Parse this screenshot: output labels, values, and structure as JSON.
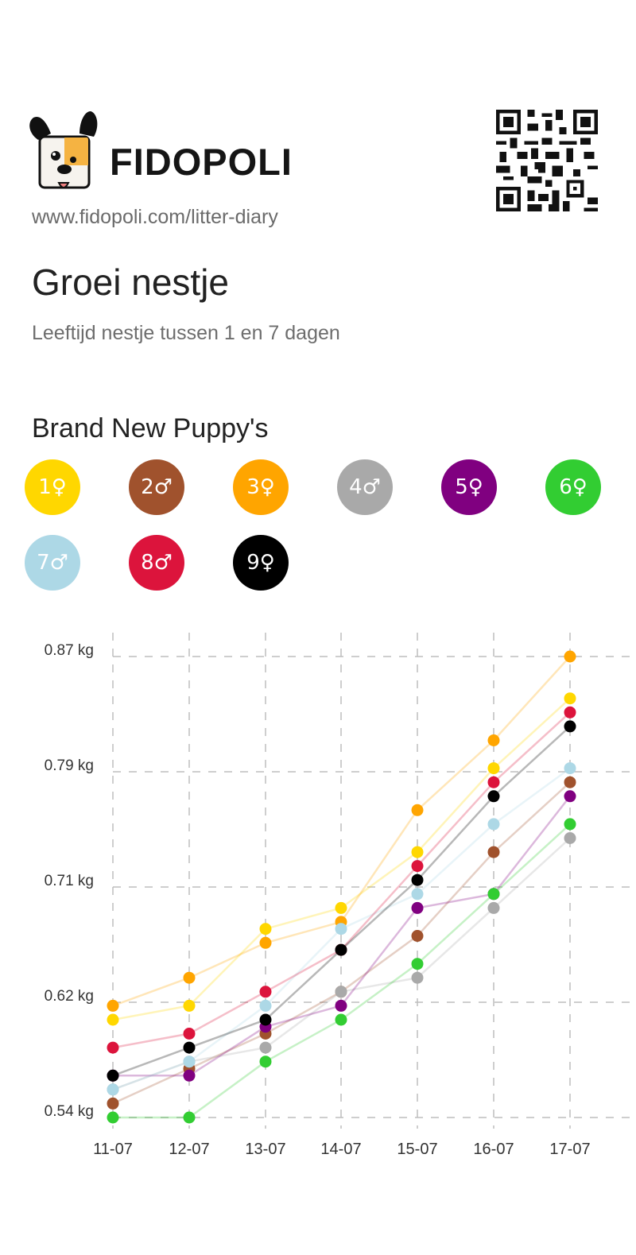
{
  "brand": {
    "name": "FIDOPOLI",
    "url": "www.fidopoli.com/litter-diary"
  },
  "page": {
    "title": "Groei nestje",
    "subtitle": "Leeftijd nestje tussen 1 en 7 dagen",
    "litter_name": "Brand New Puppy's"
  },
  "puppies": [
    {
      "label": "1♀",
      "color": "#FFD700"
    },
    {
      "label": "2♂",
      "color": "#A0522D"
    },
    {
      "label": "3♀",
      "color": "#FFA500"
    },
    {
      "label": "4♂",
      "color": "#A9A9A9"
    },
    {
      "label": "5♀",
      "color": "#800080"
    },
    {
      "label": "6♀",
      "color": "#32CD32"
    },
    {
      "label": "7♂",
      "color": "#ADD8E6"
    },
    {
      "label": "8♂",
      "color": "#DC143C"
    },
    {
      "label": "9♀",
      "color": "#000000"
    }
  ],
  "chart_data": {
    "type": "line",
    "categories": [
      "11-07",
      "12-07",
      "13-07",
      "14-07",
      "15-07",
      "16-07",
      "17-07"
    ],
    "y_ticks": [
      "0.87 kg",
      "0.79 kg",
      "0.71 kg",
      "0.62 kg",
      "0.54 kg"
    ],
    "ylim": [
      0.54,
      0.87
    ],
    "grid": true,
    "series": [
      {
        "name": "1♀",
        "color": "#FFD700",
        "values": [
          0.61,
          0.62,
          0.675,
          0.69,
          0.73,
          0.79,
          0.84
        ]
      },
      {
        "name": "2♂",
        "color": "#A0522D",
        "values": [
          0.55,
          0.575,
          0.6,
          0.63,
          0.67,
          0.73,
          0.78
        ]
      },
      {
        "name": "3♀",
        "color": "#FFA500",
        "values": [
          0.62,
          0.64,
          0.665,
          0.68,
          0.76,
          0.81,
          0.87
        ]
      },
      {
        "name": "4♂",
        "color": "#A9A9A9",
        "values": [
          0.56,
          0.58,
          0.59,
          0.63,
          0.64,
          0.69,
          0.74
        ]
      },
      {
        "name": "5♀",
        "color": "#800080",
        "values": [
          0.57,
          0.57,
          0.605,
          0.62,
          0.69,
          0.7,
          0.77
        ]
      },
      {
        "name": "6♀",
        "color": "#32CD32",
        "values": [
          0.54,
          0.54,
          0.58,
          0.61,
          0.65,
          0.7,
          0.75
        ]
      },
      {
        "name": "7♂",
        "color": "#ADD8E6",
        "values": [
          0.56,
          0.58,
          0.62,
          0.675,
          0.7,
          0.75,
          0.79
        ]
      },
      {
        "name": "8♂",
        "color": "#DC143C",
        "values": [
          0.59,
          0.6,
          0.63,
          0.66,
          0.72,
          0.78,
          0.83
        ]
      },
      {
        "name": "9♀",
        "color": "#000000",
        "values": [
          0.57,
          0.59,
          0.61,
          0.66,
          0.71,
          0.77,
          0.82
        ]
      }
    ]
  }
}
